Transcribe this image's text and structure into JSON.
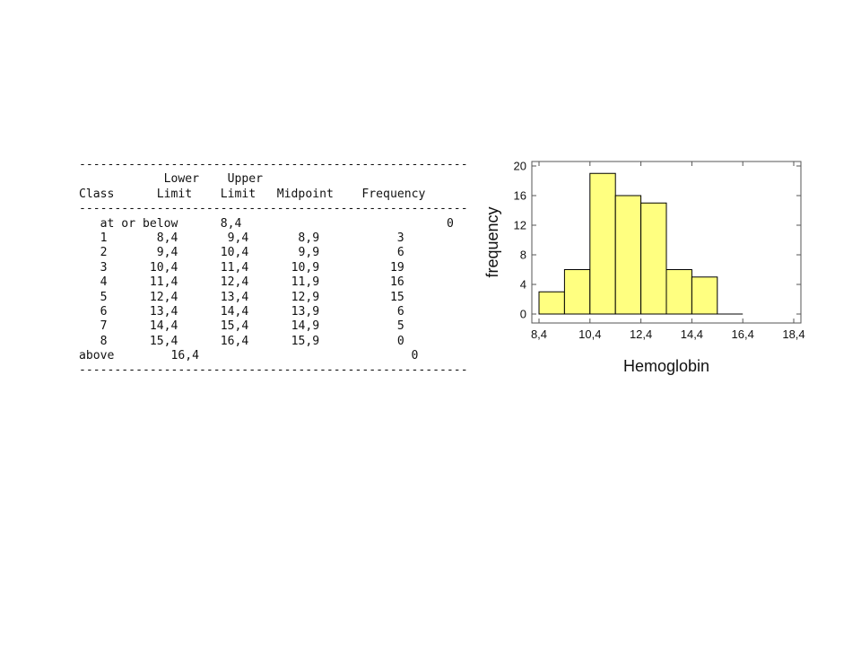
{
  "table": {
    "rule": "-------------------------------------------------------",
    "header_row1": [
      "",
      "Lower",
      "Upper",
      "",
      ""
    ],
    "header_row2": [
      "Class",
      "Limit",
      "Limit",
      "Midpoint",
      "Frequency"
    ],
    "below_row": {
      "label": "at or below",
      "limit": "8,4",
      "frequency": "0"
    },
    "rows": [
      {
        "class": "1",
        "lower": "8,4",
        "upper": "9,4",
        "midpoint": "8,9",
        "frequency": "3"
      },
      {
        "class": "2",
        "lower": "9,4",
        "upper": "10,4",
        "midpoint": "9,9",
        "frequency": "6"
      },
      {
        "class": "3",
        "lower": "10,4",
        "upper": "11,4",
        "midpoint": "10,9",
        "frequency": "19"
      },
      {
        "class": "4",
        "lower": "11,4",
        "upper": "12,4",
        "midpoint": "11,9",
        "frequency": "16"
      },
      {
        "class": "5",
        "lower": "12,4",
        "upper": "13,4",
        "midpoint": "12,9",
        "frequency": "15"
      },
      {
        "class": "6",
        "lower": "13,4",
        "upper": "14,4",
        "midpoint": "13,9",
        "frequency": "6"
      },
      {
        "class": "7",
        "lower": "14,4",
        "upper": "15,4",
        "midpoint": "14,9",
        "frequency": "5"
      },
      {
        "class": "8",
        "lower": "15,4",
        "upper": "16,4",
        "midpoint": "15,9",
        "frequency": "0"
      }
    ],
    "above_row": {
      "label": "above",
      "limit": "16,4",
      "frequency": "0"
    }
  },
  "chart_data": {
    "type": "bar",
    "title": "",
    "xlabel": "Hemoglobin",
    "ylabel": "frequency",
    "bins": [
      {
        "lower": 8.4,
        "upper": 9.4,
        "value": 3
      },
      {
        "lower": 9.4,
        "upper": 10.4,
        "value": 6
      },
      {
        "lower": 10.4,
        "upper": 11.4,
        "value": 19
      },
      {
        "lower": 11.4,
        "upper": 12.4,
        "value": 16
      },
      {
        "lower": 12.4,
        "upper": 13.4,
        "value": 15
      },
      {
        "lower": 13.4,
        "upper": 14.4,
        "value": 6
      },
      {
        "lower": 14.4,
        "upper": 15.4,
        "value": 5
      },
      {
        "lower": 15.4,
        "upper": 16.4,
        "value": 0
      }
    ],
    "xlim": [
      8.4,
      18.4
    ],
    "ylim": [
      0,
      20
    ],
    "xticks": [
      8.4,
      10.4,
      12.4,
      14.4,
      16.4,
      18.4
    ],
    "xtick_labels": [
      "8,4",
      "10,4",
      "12,4",
      "14,4",
      "16,4",
      "18,4"
    ],
    "yticks": [
      0,
      4,
      8,
      12,
      16,
      20
    ],
    "ytick_labels": [
      "0",
      "4",
      "8",
      "12",
      "16",
      "20"
    ],
    "grid": false,
    "legend": "none",
    "bar_color": "#ffff80",
    "edge_color": "#000000"
  }
}
